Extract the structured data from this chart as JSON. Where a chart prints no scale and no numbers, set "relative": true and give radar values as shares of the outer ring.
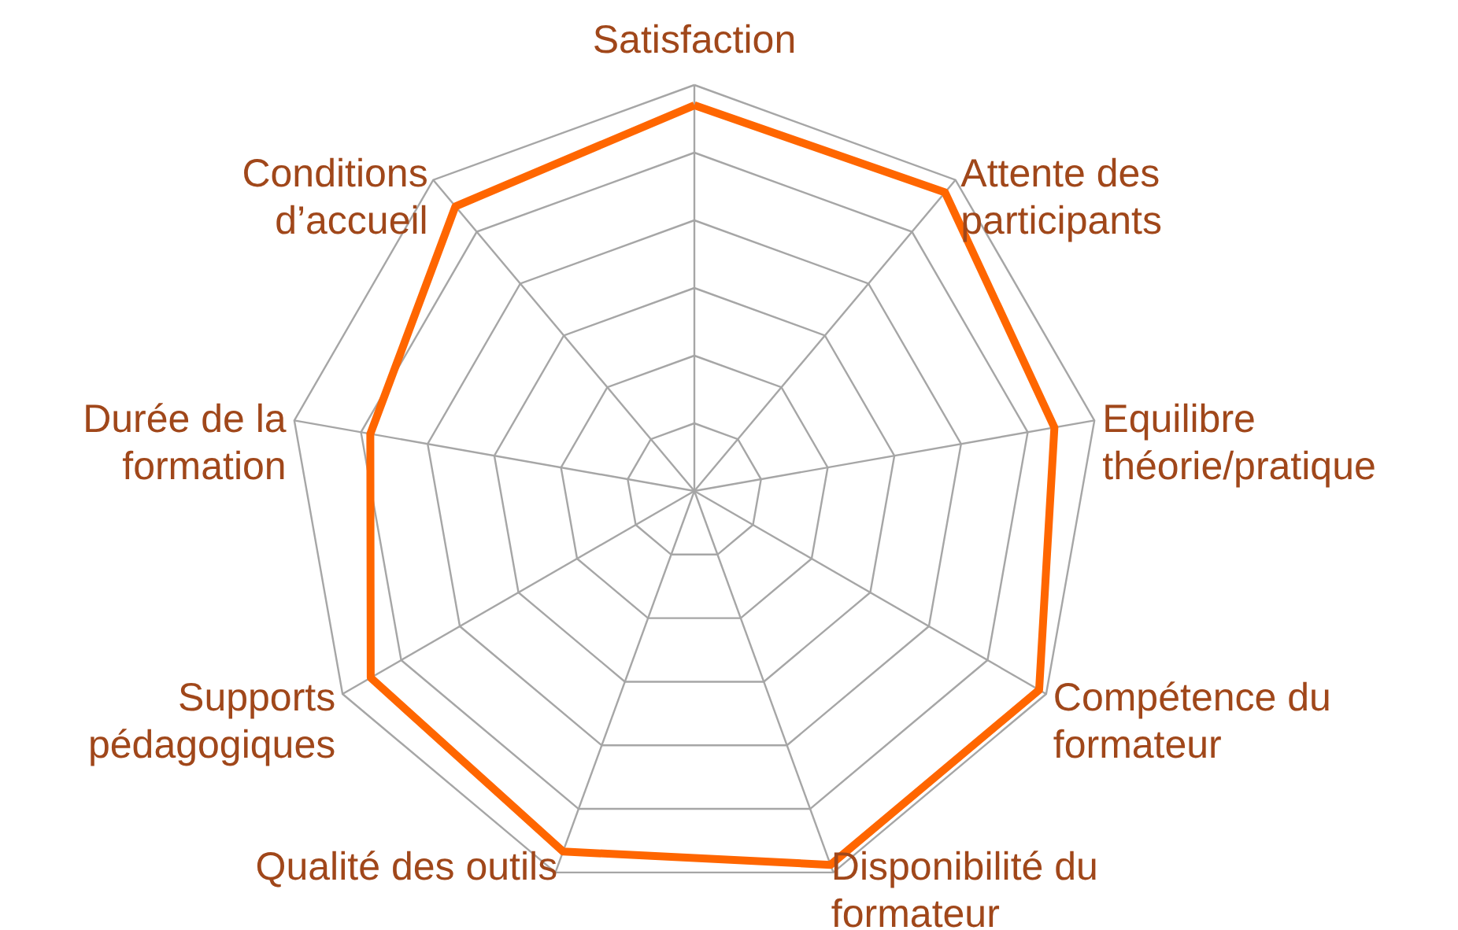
{
  "chart_data": {
    "type": "radar",
    "relative": true,
    "grid": true,
    "categories": [
      "Satisfaction",
      "Attente des participants",
      "Equilibre théorie/pratique",
      "Compétence du formateur",
      "Disponibilité du formateur",
      "Qualité des outils",
      "Supports pédagogiques",
      "Durée de la formation",
      "Conditions d’accueil"
    ],
    "series": [
      {
        "color": "#ff6600",
        "values": [
          0.95,
          0.96,
          0.9,
          0.98,
          0.98,
          0.945,
          0.92,
          0.81,
          0.915
        ]
      }
    ]
  }
}
